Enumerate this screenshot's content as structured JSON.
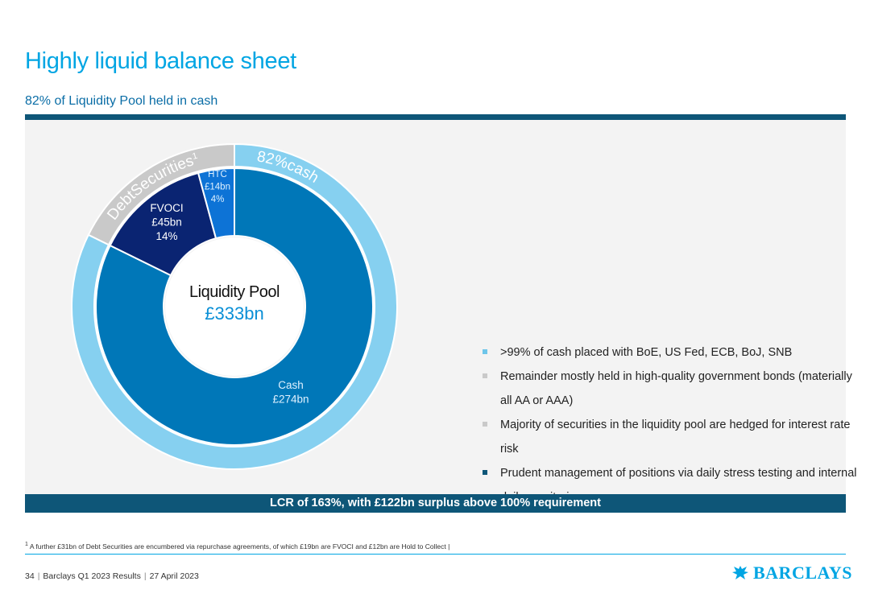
{
  "header": {
    "title": "Highly liquid balance sheet",
    "subtitle": "82% of Liquidity Pool held in cash"
  },
  "chart_data": {
    "type": "donut",
    "center_title": "Liquidity Pool",
    "center_value": "£333bn",
    "inner_ring": [
      {
        "name": "Cash",
        "value": 274,
        "label_lines": [
          "Cash",
          "£274bn"
        ],
        "color": "#0077b8",
        "label_color": "#dff1ff"
      },
      {
        "name": "FVOCI",
        "value": 45,
        "label_lines": [
          "FVOCI",
          "£45bn",
          "14%"
        ],
        "color": "#0a2472",
        "label_color": "#ffffff"
      },
      {
        "name": "HTC",
        "value": 14,
        "label_lines": [
          "HTC",
          "£14bn",
          "4%"
        ],
        "color": "#0d73d6",
        "label_color": "#dff1ff"
      }
    ],
    "outer_ring": [
      {
        "name": "82% cash",
        "value": 274,
        "label": "82%cash",
        "color": "#86d0f0"
      },
      {
        "name": "Debt Securities",
        "value": 59,
        "label": "DebtSecurities",
        "superscript": "1",
        "color": "#c9c9c9"
      }
    ]
  },
  "bullets": [
    {
      "text": ">99% of cash placed with BoE, US Fed, ECB, BoJ, SNB",
      "color": "#6ec6ea"
    },
    {
      "text": "Remainder mostly held in high-quality government bonds (materially all AA or AAA)",
      "color": "#c9c9c9"
    },
    {
      "text": "Majority of securities in the liquidity pool are hedged for interest rate risk",
      "color": "#c9c9c9"
    },
    {
      "text": "Prudent management of positions via daily stress testing and internal daily monitoring",
      "color": "#0e5678"
    }
  ],
  "banner": "LCR of 163%, with £122bn surplus above 100% requirement",
  "footnote": {
    "marker": "1",
    "text": "A further £31bn of Debt Securities are encumbered via repurchase agreements, of which £19bn are FVOCI and £12bn are Hold to Collect"
  },
  "footer": {
    "page": "34",
    "deck": "Barclays Q1 2023 Results",
    "date": "27 April 2023"
  },
  "logo": {
    "text": "BARCLAYS",
    "icon": "eagle-icon"
  }
}
